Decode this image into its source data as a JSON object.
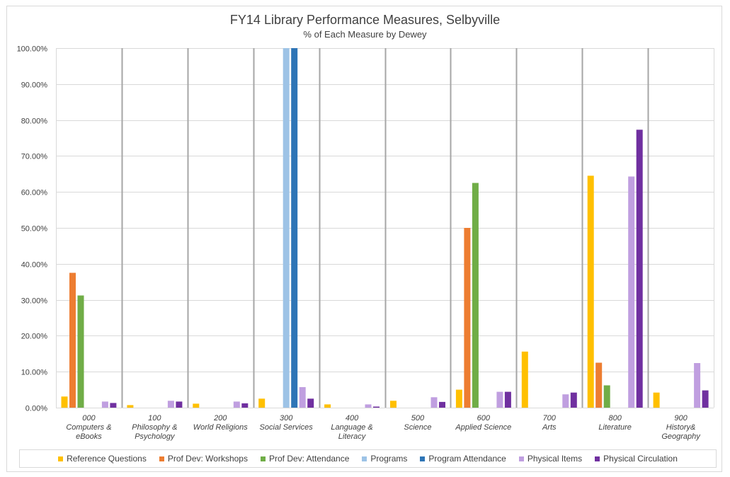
{
  "chart_data": {
    "type": "bar",
    "title": "FY14 Library Performance Measures, Selbyville",
    "subtitle": "% of Each Measure by Dewey",
    "xlabel": "",
    "ylabel": "",
    "ylim": [
      0,
      100
    ],
    "y_ticks": [
      "0.00%",
      "10.00%",
      "20.00%",
      "30.00%",
      "40.00%",
      "50.00%",
      "60.00%",
      "70.00%",
      "80.00%",
      "90.00%",
      "100.00%"
    ],
    "y_tick_values": [
      0,
      10,
      20,
      30,
      40,
      50,
      60,
      70,
      80,
      90,
      100
    ],
    "grid": true,
    "legend_position": "bottom",
    "categories": [
      [
        "000",
        "Computers &",
        "eBooks"
      ],
      [
        "100",
        "Philosophy &",
        "Psychology"
      ],
      [
        "200",
        "World Religions"
      ],
      [
        "300",
        "Social Services"
      ],
      [
        "400",
        "Language &",
        "Literacy"
      ],
      [
        "500",
        "Science"
      ],
      [
        "600",
        "Applied Science"
      ],
      [
        "700",
        "Arts"
      ],
      [
        "800",
        "Literature"
      ],
      [
        "900",
        "History&",
        "Geography"
      ]
    ],
    "series": [
      {
        "name": "Reference Questions",
        "color": "#ffc000",
        "values": [
          3.1,
          0.7,
          1.1,
          2.5,
          0.9,
          1.9,
          5.0,
          15.6,
          64.5,
          4.2
        ]
      },
      {
        "name": "Prof Dev: Workshops",
        "color": "#ed7d31",
        "values": [
          37.5,
          0,
          0,
          0,
          0,
          0,
          50.0,
          0,
          12.5,
          0
        ]
      },
      {
        "name": "Prof Dev: Attendance",
        "color": "#70ad47",
        "values": [
          31.2,
          0,
          0,
          0,
          0,
          0,
          62.5,
          0,
          6.2,
          0
        ]
      },
      {
        "name": "Programs",
        "color": "#9dc3e6",
        "values": [
          0,
          0,
          0,
          100,
          0,
          0,
          0,
          0,
          0,
          0
        ]
      },
      {
        "name": "Program Attendance",
        "color": "#2e75b6",
        "values": [
          0,
          0,
          0,
          100,
          0,
          0,
          0,
          0,
          0,
          0
        ]
      },
      {
        "name": "Physical Items",
        "color": "#c09fe0",
        "values": [
          1.7,
          1.9,
          1.7,
          5.7,
          0.9,
          2.9,
          4.4,
          3.7,
          64.3,
          12.4
        ]
      },
      {
        "name": "Physical Circulation",
        "color": "#7030a0",
        "values": [
          1.3,
          1.7,
          1.2,
          2.5,
          0.3,
          1.6,
          4.4,
          4.2,
          77.3,
          4.8
        ]
      }
    ]
  }
}
